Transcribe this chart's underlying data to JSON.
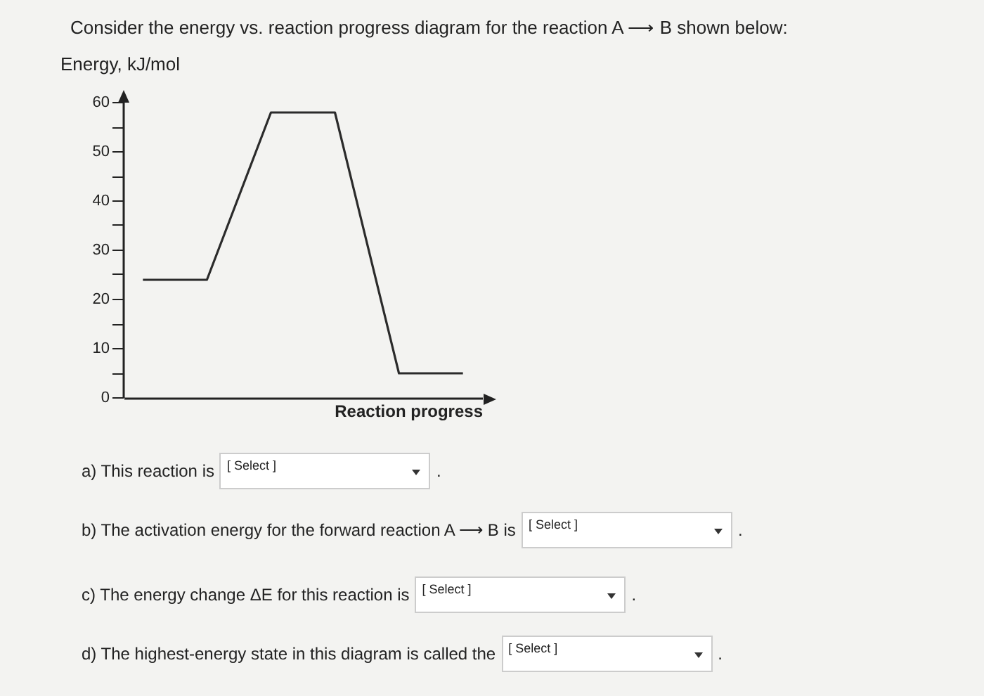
{
  "chart_data": {
    "type": "line",
    "title": "Consider the energy vs. reaction progress diagram for the reaction A ⟶ B shown below:",
    "ylabel": "Energy, kJ/mol",
    "xlabel": "Reaction progress",
    "categories": [
      null,
      null,
      null,
      null,
      null,
      null
    ],
    "series": [
      {
        "color": "#2b2b2b",
        "values": [
          24,
          24,
          58,
          58,
          5,
          5
        ]
      }
    ],
    "ylim": [
      0,
      60
    ],
    "yticks": [
      0,
      {
        "value": 5,
        "label": null
      },
      10,
      {
        "value": 15,
        "label": null
      },
      20,
      {
        "value": 25,
        "label": null
      },
      30,
      {
        "value": 35,
        "label": null
      },
      40,
      {
        "value": 45,
        "label": null
      },
      50,
      {
        "value": 55,
        "label": null
      },
      60
    ],
    "tick_labels": "y",
    "marker": "none",
    "line_style": "solid",
    "grid": false,
    "legend": false,
    "annotations": [
      "a) This reaction is",
      "[ Select ]",
      ".",
      "b) The activation energy for the forward reaction A ⟶ B is",
      "[ Select ]",
      ".",
      "c) The energy change ΔE for this reaction is",
      "[ Select ]",
      ".",
      "d) The highest-energy state in this diagram is called the",
      "[ Select ]",
      "."
    ]
  }
}
